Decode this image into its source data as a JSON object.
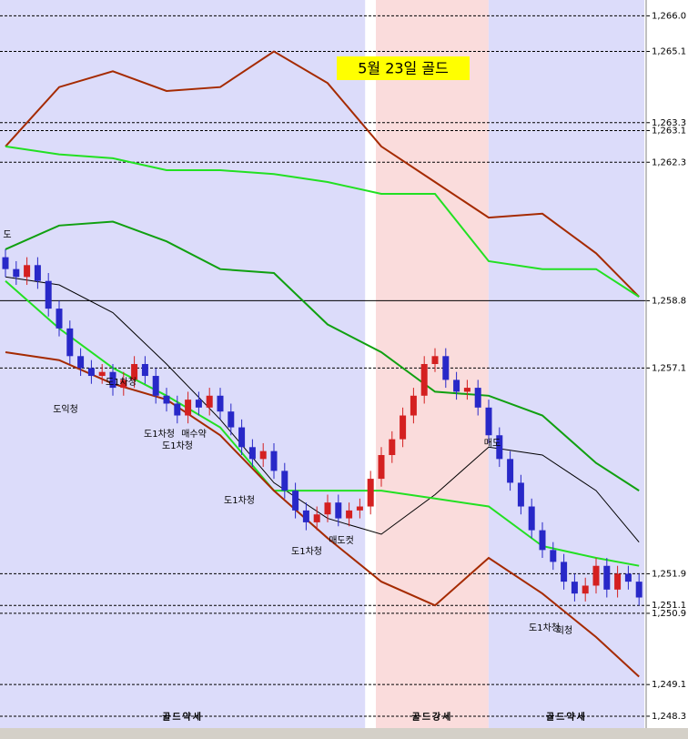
{
  "chart_data": {
    "type": "candlestick",
    "title": "5월 23일 골드",
    "ylim": [
      1248.0,
      1266.4
    ],
    "yticks": [
      {
        "value": 1266.0,
        "label": "1,266.0"
      },
      {
        "value": 1265.1,
        "label": "1,265.1"
      },
      {
        "value": 1263.3,
        "label": "1,263.3"
      },
      {
        "value": 1263.1,
        "label": "1,263.1"
      },
      {
        "value": 1262.3,
        "label": "1,262.3"
      },
      {
        "value": 1258.8,
        "label": "1,258.8"
      },
      {
        "value": 1257.1,
        "label": "1,257.1"
      },
      {
        "value": 1251.9,
        "label": "1,251.9"
      },
      {
        "value": 1251.1,
        "label": "1,251.1"
      },
      {
        "value": 1250.9,
        "label": "1,250.9"
      },
      {
        "value": 1249.1,
        "label": "1,249.1"
      },
      {
        "value": 1248.3,
        "label": "1,248.3"
      }
    ],
    "up_color": "#d42020",
    "down_color": "#2828c8",
    "open": [
      1259.9,
      1259.6,
      1259.4,
      1259.7,
      1259.3,
      1258.6,
      1258.1,
      1257.4,
      1257.1,
      1256.9,
      1257.0,
      1256.6,
      1256.8,
      1257.2,
      1256.9,
      1256.4,
      1256.2,
      1255.9,
      1256.3,
      1256.1,
      1256.4,
      1256.0,
      1255.6,
      1255.1,
      1254.8,
      1255.0,
      1254.5,
      1254.0,
      1253.5,
      1253.2,
      1253.4,
      1253.7,
      1253.3,
      1253.5,
      1253.6,
      1254.3,
      1254.9,
      1255.3,
      1255.9,
      1256.4,
      1257.2,
      1257.4,
      1256.8,
      1256.5,
      1256.6,
      1256.1,
      1255.4,
      1254.8,
      1254.2,
      1253.6,
      1253.0,
      1252.5,
      1252.2,
      1251.7,
      1251.4,
      1251.6,
      1252.1,
      1251.5,
      1251.9,
      1251.7
    ],
    "high": [
      1260.1,
      1259.8,
      1259.9,
      1259.9,
      1259.5,
      1258.8,
      1258.3,
      1257.6,
      1257.3,
      1257.2,
      1257.2,
      1257.0,
      1257.4,
      1257.4,
      1257.1,
      1256.6,
      1256.4,
      1256.5,
      1256.5,
      1256.6,
      1256.6,
      1256.2,
      1255.8,
      1255.3,
      1255.2,
      1255.2,
      1254.7,
      1254.2,
      1253.7,
      1253.6,
      1253.9,
      1253.9,
      1253.7,
      1253.8,
      1254.5,
      1255.1,
      1255.5,
      1256.1,
      1256.6,
      1257.4,
      1257.6,
      1257.6,
      1257.0,
      1256.8,
      1256.8,
      1256.3,
      1255.6,
      1255.0,
      1254.4,
      1253.8,
      1253.2,
      1252.7,
      1252.4,
      1251.9,
      1251.8,
      1252.3,
      1252.3,
      1252.1,
      1252.1,
      1251.9
    ],
    "low": [
      1259.4,
      1259.2,
      1259.2,
      1259.1,
      1258.4,
      1257.9,
      1257.2,
      1256.9,
      1256.7,
      1256.7,
      1256.4,
      1256.4,
      1256.6,
      1256.7,
      1256.2,
      1256.0,
      1255.7,
      1255.7,
      1255.9,
      1255.9,
      1255.8,
      1255.4,
      1254.9,
      1254.6,
      1254.6,
      1254.3,
      1253.8,
      1253.3,
      1253.0,
      1253.0,
      1253.2,
      1253.1,
      1253.1,
      1253.3,
      1253.4,
      1254.1,
      1254.7,
      1255.1,
      1255.7,
      1256.2,
      1257.0,
      1256.6,
      1256.3,
      1256.3,
      1255.9,
      1255.2,
      1254.6,
      1254.0,
      1253.4,
      1252.8,
      1252.3,
      1252.0,
      1251.5,
      1251.2,
      1251.2,
      1251.4,
      1251.3,
      1251.3,
      1251.5,
      1251.1
    ],
    "close": [
      1259.6,
      1259.4,
      1259.7,
      1259.3,
      1258.6,
      1258.1,
      1257.4,
      1257.1,
      1256.9,
      1257.0,
      1256.6,
      1256.8,
      1257.2,
      1256.9,
      1256.4,
      1256.2,
      1255.9,
      1256.3,
      1256.1,
      1256.4,
      1256.0,
      1255.6,
      1255.1,
      1254.8,
      1255.0,
      1254.5,
      1254.0,
      1253.5,
      1253.2,
      1253.4,
      1253.7,
      1253.3,
      1253.5,
      1253.6,
      1254.3,
      1254.9,
      1255.3,
      1255.9,
      1256.4,
      1257.2,
      1257.4,
      1256.8,
      1256.5,
      1256.6,
      1256.1,
      1255.4,
      1254.8,
      1254.2,
      1253.6,
      1253.0,
      1252.5,
      1252.2,
      1251.7,
      1251.4,
      1251.6,
      1252.1,
      1251.5,
      1251.9,
      1251.7,
      1251.3
    ],
    "line_x": [
      0,
      5,
      10,
      15,
      20,
      25,
      30,
      35,
      40,
      45,
      50,
      55,
      59
    ],
    "lines": [
      {
        "color": "#a52a00",
        "values": [
          1262.7,
          1264.2,
          1264.6,
          1264.1,
          1264.2,
          1265.1,
          1264.3,
          1262.7,
          1261.8,
          1260.9,
          1261.0,
          1260.0,
          1258.9
        ]
      },
      {
        "color": "#22e022",
        "values": [
          1262.7,
          1262.5,
          1262.4,
          1262.1,
          1262.1,
          1262.0,
          1261.8,
          1261.5,
          1261.5,
          1259.8,
          1259.6,
          1259.6,
          1258.9
        ]
      },
      {
        "color": "#10a010",
        "values": [
          1260.1,
          1260.7,
          1260.8,
          1260.3,
          1259.6,
          1259.5,
          1258.2,
          1257.5,
          1256.5,
          1256.4,
          1255.9,
          1254.7,
          1254.0
        ]
      },
      {
        "color": "#000000",
        "values": [
          1259.4,
          1259.2,
          1258.5,
          1257.2,
          1255.8,
          1254.2,
          1253.3,
          1252.9,
          1253.9,
          1255.1,
          1254.9,
          1254.0,
          1252.7
        ]
      },
      {
        "color": "#22e022",
        "values": [
          1259.3,
          1258.1,
          1257.1,
          1256.4,
          1255.6,
          1254.0,
          1254.0,
          1254.0,
          1253.8,
          1253.6,
          1252.6,
          1252.3,
          1252.1
        ]
      },
      {
        "color": "#a52a00",
        "values": [
          1257.5,
          1257.3,
          1256.7,
          1256.3,
          1255.4,
          1254.0,
          1252.8,
          1251.7,
          1251.1,
          1252.3,
          1251.4,
          1250.3,
          1249.3
        ]
      }
    ],
    "zones": [
      {
        "label": "골드약세",
        "color": "#dcdcfa",
        "from": 0,
        "to": 34
      },
      {
        "label": "골드강세",
        "color": "#fadcdc",
        "from": 35,
        "to": 45.5
      },
      {
        "label": "골드약세",
        "color": "#dcdcfa",
        "from": 45.5,
        "to": 60
      }
    ],
    "annotations": [
      "도",
      "도익청",
      "도1차청",
      "도1차청",
      "매수약",
      "도1차청",
      "도1차청",
      "도1차청",
      "매도컷",
      "매도",
      "도1차청",
      "회청"
    ]
  }
}
